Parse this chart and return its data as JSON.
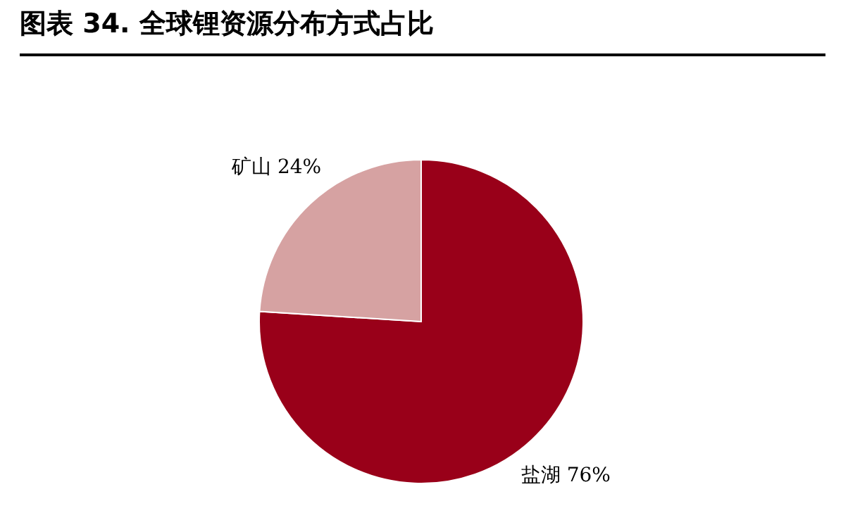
{
  "chart_data": {
    "type": "pie",
    "title": "图表 34. 全球锂资源分布方式占比",
    "categories": [
      "盐湖",
      "矿山"
    ],
    "values": [
      76,
      24
    ],
    "colors": [
      "#990019",
      "#d6a2a2"
    ],
    "value_labels": [
      "76%",
      "24%"
    ],
    "legend": false
  }
}
